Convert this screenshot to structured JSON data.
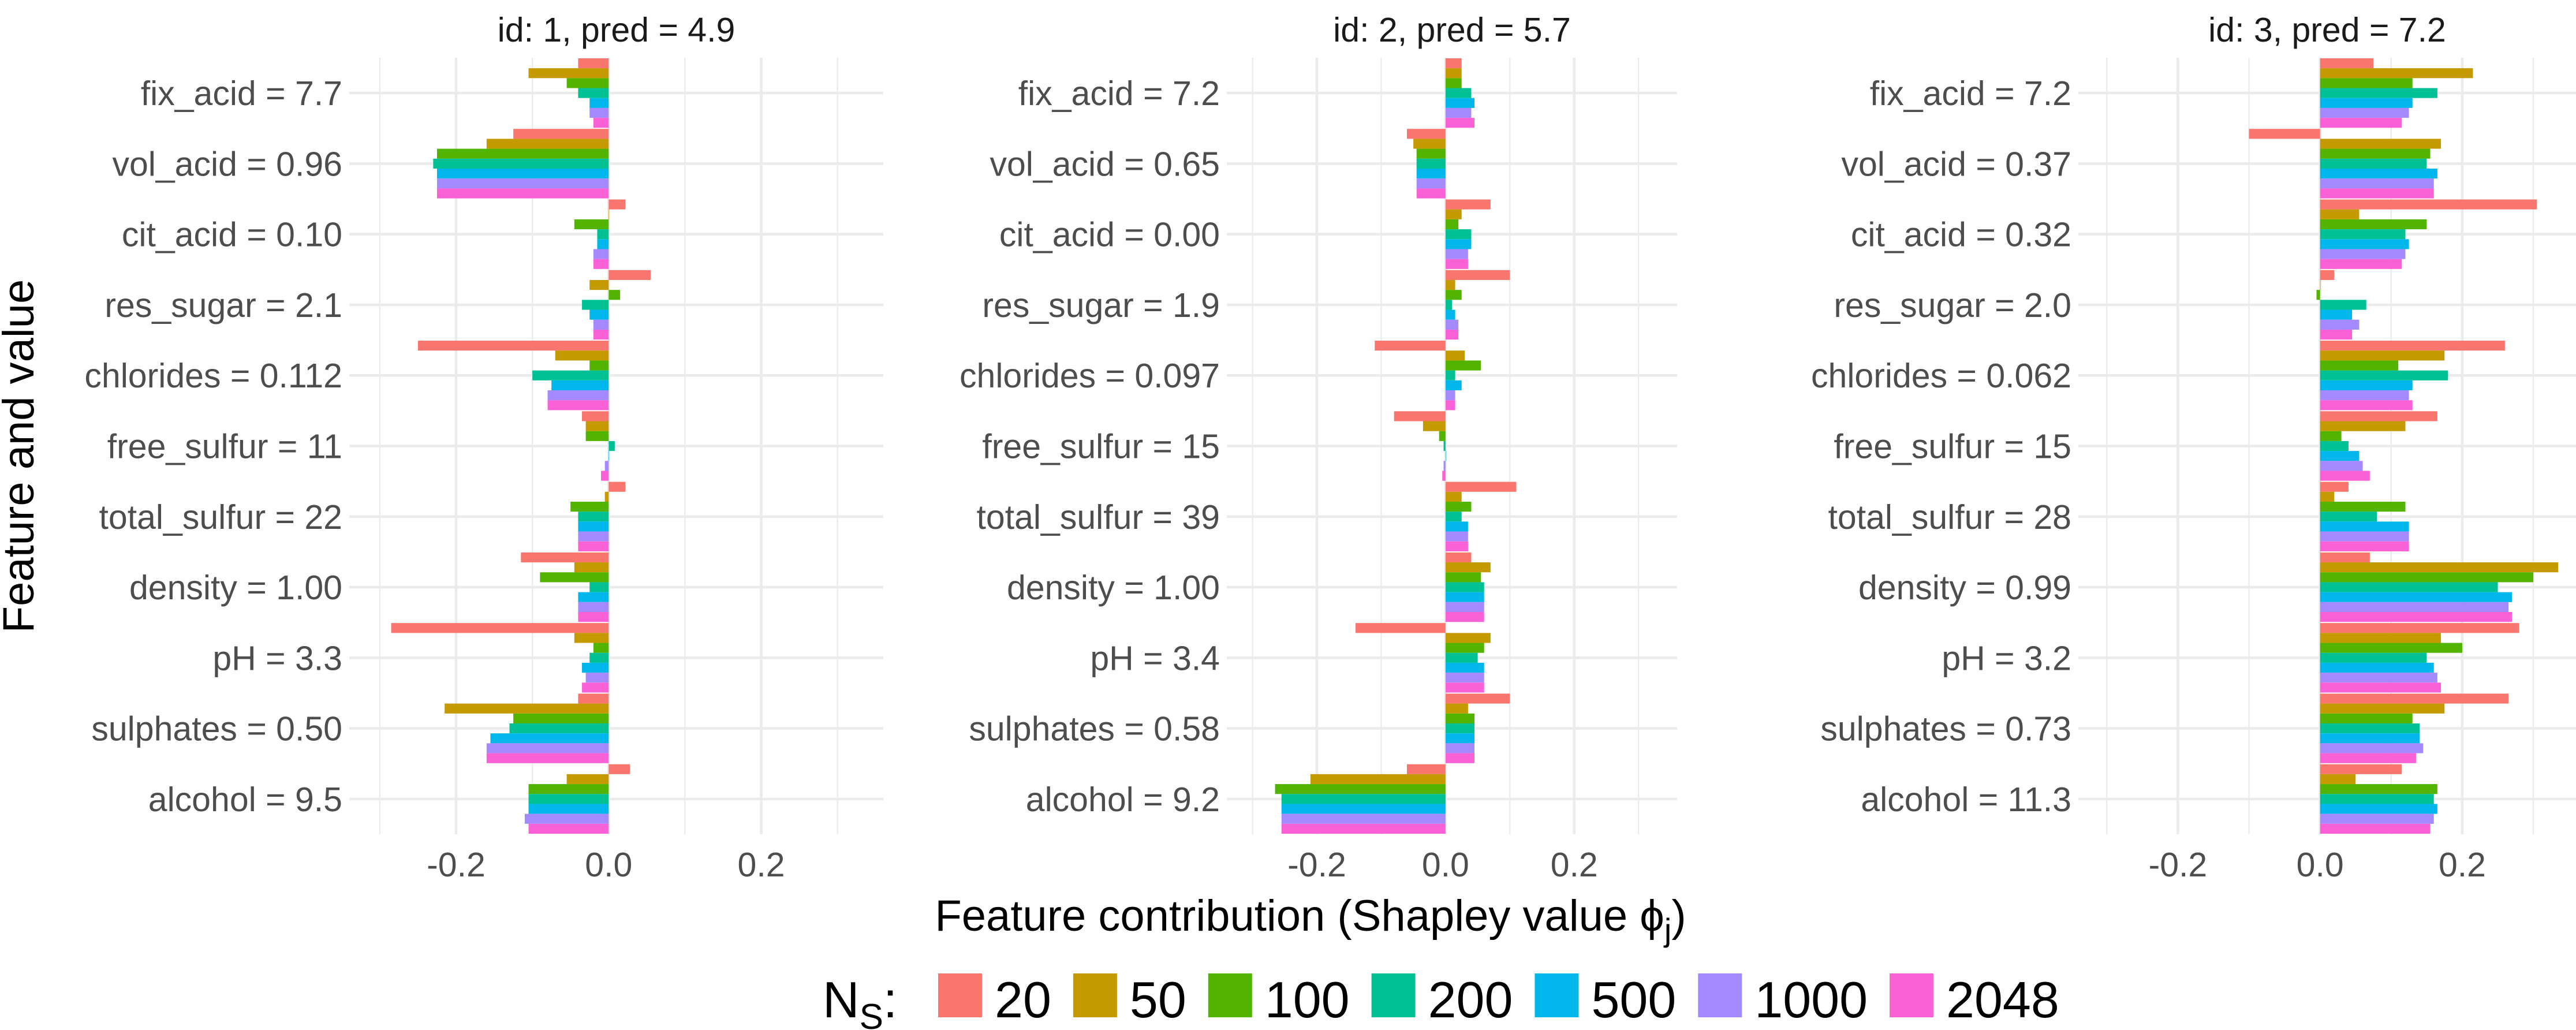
{
  "chart_data": {
    "type": "bar",
    "orientation": "horizontal",
    "grouped": true,
    "xlabel": "Feature contribution (Shapley value ",
    "xlabel_symbol": "ϕ",
    "xlabel_subscript": "j",
    "xlabel_suffix": ")",
    "ylabel": "Feature and value",
    "xlim": [
      -0.34,
      0.36
    ],
    "xticks": [
      -0.2,
      0.0,
      0.2
    ],
    "xtick_labels": [
      "-0.2",
      "0.0",
      "0.2"
    ],
    "grid": true,
    "legend": {
      "title_main": "N",
      "title_sub": "S",
      "title_suffix": ":",
      "placement": "bottom",
      "entries": [
        "20",
        "50",
        "100",
        "200",
        "500",
        "1000",
        "2048"
      ],
      "colors": [
        "#F8766D",
        "#C49A00",
        "#53B400",
        "#00C094",
        "#00B6EB",
        "#A58AFF",
        "#FB61D7"
      ]
    },
    "panels": [
      {
        "title": "id: 1, pred = 4.9",
        "features": [
          "fix_acid = 7.7",
          "vol_acid = 0.96",
          "cit_acid = 0.10",
          "res_sugar = 2.1",
          "chlorides = 0.112",
          "free_sulfur = 11",
          "total_sulfur = 22",
          "density = 1.00",
          "pH = 3.3",
          "sulphates = 0.50",
          "alcohol = 9.5"
        ],
        "series": [
          {
            "name": "20",
            "values": [
              -0.04,
              -0.125,
              0.022,
              0.055,
              -0.25,
              -0.035,
              0.022,
              -0.115,
              -0.285,
              -0.04,
              0.028
            ]
          },
          {
            "name": "50",
            "values": [
              -0.105,
              -0.16,
              0.0,
              -0.025,
              -0.07,
              -0.03,
              -0.005,
              -0.045,
              -0.045,
              -0.215,
              -0.055
            ]
          },
          {
            "name": "100",
            "values": [
              -0.055,
              -0.225,
              -0.045,
              0.015,
              -0.025,
              -0.03,
              -0.05,
              -0.09,
              -0.02,
              -0.125,
              -0.105
            ]
          },
          {
            "name": "200",
            "values": [
              -0.04,
              -0.23,
              -0.015,
              -0.035,
              -0.1,
              0.008,
              -0.04,
              -0.025,
              -0.025,
              -0.13,
              -0.105
            ]
          },
          {
            "name": "500",
            "values": [
              -0.025,
              -0.225,
              -0.015,
              -0.025,
              -0.075,
              0.0,
              -0.04,
              -0.04,
              -0.035,
              -0.155,
              -0.105
            ]
          },
          {
            "name": "1000",
            "values": [
              -0.025,
              -0.225,
              -0.02,
              -0.02,
              -0.08,
              -0.005,
              -0.04,
              -0.04,
              -0.03,
              -0.16,
              -0.11
            ]
          },
          {
            "name": "2048",
            "values": [
              -0.02,
              -0.225,
              -0.02,
              -0.02,
              -0.08,
              -0.01,
              -0.04,
              -0.04,
              -0.035,
              -0.16,
              -0.105
            ]
          }
        ]
      },
      {
        "title": "id: 2, pred = 5.7",
        "features": [
          "fix_acid = 7.2",
          "vol_acid = 0.65",
          "cit_acid = 0.00",
          "res_sugar = 1.9",
          "chlorides = 0.097",
          "free_sulfur = 15",
          "total_sulfur = 39",
          "density = 1.00",
          "pH = 3.4",
          "sulphates = 0.58",
          "alcohol = 9.2"
        ],
        "series": [
          {
            "name": "20",
            "values": [
              0.025,
              -0.06,
              0.07,
              0.1,
              -0.11,
              -0.08,
              0.11,
              0.04,
              -0.14,
              0.1,
              -0.06
            ]
          },
          {
            "name": "50",
            "values": [
              0.025,
              -0.05,
              0.025,
              0.015,
              0.03,
              -0.035,
              0.025,
              0.07,
              0.07,
              0.035,
              -0.21
            ]
          },
          {
            "name": "100",
            "values": [
              0.025,
              -0.045,
              0.02,
              0.025,
              0.055,
              -0.01,
              0.04,
              0.055,
              0.06,
              0.045,
              -0.265
            ]
          },
          {
            "name": "200",
            "values": [
              0.04,
              -0.045,
              0.04,
              0.01,
              0.015,
              -0.003,
              0.025,
              0.06,
              0.05,
              0.045,
              -0.255
            ]
          },
          {
            "name": "500",
            "values": [
              0.045,
              -0.045,
              0.04,
              0.015,
              0.025,
              0.0,
              0.035,
              0.06,
              0.06,
              0.045,
              -0.255
            ]
          },
          {
            "name": "1000",
            "values": [
              0.04,
              -0.045,
              0.035,
              0.02,
              0.015,
              -0.003,
              0.035,
              0.06,
              0.06,
              0.045,
              -0.255
            ]
          },
          {
            "name": "2048",
            "values": [
              0.045,
              -0.045,
              0.035,
              0.02,
              0.015,
              -0.005,
              0.035,
              0.06,
              0.06,
              0.045,
              -0.255
            ]
          }
        ]
      },
      {
        "title": "id: 3, pred = 7.2",
        "features": [
          "fix_acid = 7.2",
          "vol_acid = 0.37",
          "cit_acid = 0.32",
          "res_sugar = 2.0",
          "chlorides = 0.062",
          "free_sulfur = 15",
          "total_sulfur = 28",
          "density = 0.99",
          "pH = 3.2",
          "sulphates = 0.73",
          "alcohol = 11.3"
        ],
        "series": [
          {
            "name": "20",
            "values": [
              0.075,
              -0.1,
              0.305,
              0.02,
              0.26,
              0.165,
              0.04,
              0.07,
              0.28,
              0.265,
              0.115
            ]
          },
          {
            "name": "50",
            "values": [
              0.215,
              0.17,
              0.055,
              0.0,
              0.175,
              0.12,
              0.02,
              0.335,
              0.17,
              0.175,
              0.05
            ]
          },
          {
            "name": "100",
            "values": [
              0.13,
              0.155,
              0.15,
              -0.005,
              0.11,
              0.03,
              0.12,
              0.3,
              0.2,
              0.13,
              0.165
            ]
          },
          {
            "name": "200",
            "values": [
              0.165,
              0.15,
              0.12,
              0.065,
              0.18,
              0.04,
              0.08,
              0.25,
              0.15,
              0.14,
              0.16
            ]
          },
          {
            "name": "500",
            "values": [
              0.13,
              0.165,
              0.125,
              0.045,
              0.13,
              0.055,
              0.125,
              0.27,
              0.16,
              0.14,
              0.165
            ]
          },
          {
            "name": "1000",
            "values": [
              0.125,
              0.16,
              0.12,
              0.055,
              0.125,
              0.06,
              0.125,
              0.265,
              0.165,
              0.145,
              0.16
            ]
          },
          {
            "name": "2048",
            "values": [
              0.115,
              0.16,
              0.115,
              0.045,
              0.13,
              0.07,
              0.125,
              0.27,
              0.17,
              0.135,
              0.155
            ]
          }
        ]
      }
    ]
  }
}
